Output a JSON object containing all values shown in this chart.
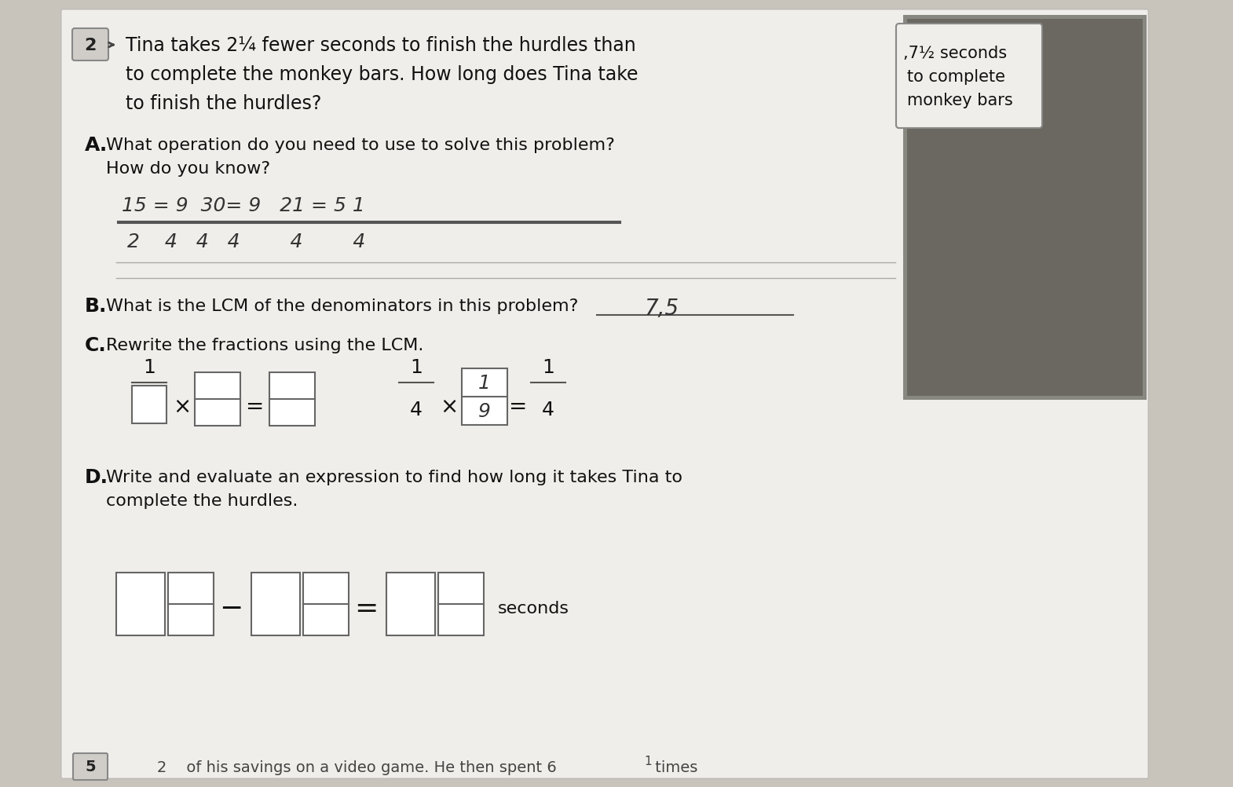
{
  "bg_color": "#c8c4bc",
  "paper_color": "#f0eeea",
  "title_num": "2",
  "problem_text_line1": "Tina takes 2¼ fewer seconds to finish the hurdles than",
  "problem_text_line2": "to complete the monkey bars. How long does Tina take",
  "problem_text_line3": "to finish the hurdles?",
  "sidebar_line1": ",7½ seconds",
  "sidebar_line2": "to complete",
  "sidebar_line3": "monkey bars",
  "section_a_label": "A.",
  "section_a_text1": "What operation do you need to use to solve this problem?",
  "section_a_text2": "How do you know?",
  "handwritten_num": "15 = 9  30= 9   21 = 5 1",
  "handwritten_den": "2    4   4   4        4        4",
  "section_b_label": "B.",
  "section_b_text": "What is the LCM of the denominators in this problem?",
  "section_b_answer": "7,5",
  "section_c_label": "C.",
  "section_c_text": "Rewrite the fractions using the LCM.",
  "section_d_label": "D.",
  "section_d_text1": "Write and evaluate an expression to find how long it takes Tina to",
  "section_d_text2": "complete the hurdles.",
  "bottom_text": "2    of his savings on a video game. He then spent 6",
  "bottom_sup": "1",
  "bottom_end": " times"
}
